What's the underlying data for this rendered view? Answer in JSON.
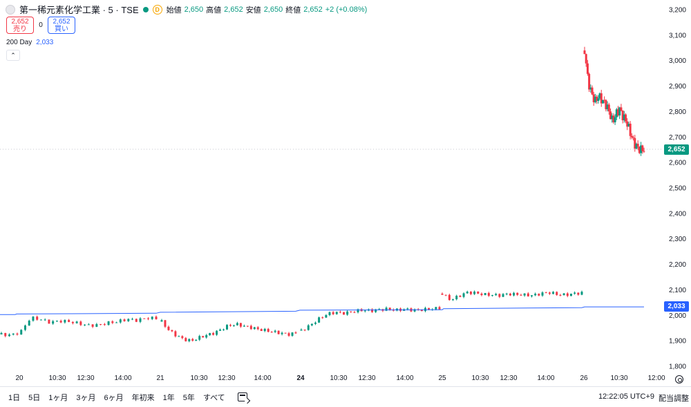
{
  "header": {
    "title": "第一稀元素化学工業 · 5 · TSE",
    "interval_badge": "D",
    "ohlc": [
      {
        "key": "始値",
        "value": "2,650"
      },
      {
        "key": "高値",
        "value": "2,652"
      },
      {
        "key": "安値",
        "value": "2,650"
      },
      {
        "key": "終値",
        "value": "2,652"
      },
      {
        "key": "",
        "value": "+2 (+0.08%)"
      }
    ]
  },
  "trade": {
    "sell_price": "2,652",
    "sell_label": "売り",
    "spread": "0",
    "buy_price": "2,652",
    "buy_label": "買い"
  },
  "ma_legend": {
    "label": "200 Day",
    "value": "2,033"
  },
  "collapse_icon": "chevron-up-icon",
  "price_tags": {
    "last": "2,652",
    "ma": "2,033"
  },
  "bottom_bar": {
    "ranges": [
      "1日",
      "5日",
      "1ヶ月",
      "3ヶ月",
      "6ヶ月",
      "年初来",
      "1年",
      "5年",
      "すべて"
    ],
    "clock": "12:22:05 UTC+9",
    "adjust": "配当調整"
  },
  "colors": {
    "up": "#089981",
    "down": "#f23645",
    "ma": "#2962ff",
    "grid": "#f0f3fa"
  },
  "chart_data": {
    "type": "candlestick",
    "y_axis": {
      "ticks": [
        3200,
        3100,
        3000,
        2900,
        2800,
        2700,
        2600,
        2500,
        2400,
        2300,
        2200,
        2100,
        2000,
        1900,
        1800
      ],
      "tick_labels": [
        "3,200",
        "3,100",
        "3,000",
        "2,900",
        "2,800",
        "2,700",
        "2,600",
        "2,500",
        "2,400",
        "2,300",
        "2,200",
        "2,100",
        "2,000",
        "1,900",
        "1,800"
      ],
      "ylim": [
        1770,
        3230
      ]
    },
    "x_axis": {
      "labels": [
        "20",
        "10:30",
        "12:30",
        "14:00",
        "21",
        "10:30",
        "12:30",
        "14:00",
        "24",
        "10:30",
        "12:30",
        "14:00",
        "25",
        "10:30",
        "12:30",
        "14:00",
        "26",
        "10:30",
        "12:00"
      ],
      "bold": [
        false,
        false,
        false,
        false,
        false,
        false,
        false,
        false,
        true,
        false,
        false,
        false,
        false,
        false,
        false,
        false,
        false,
        false,
        false
      ]
    },
    "last_price": 2652,
    "series": [
      {
        "name": "200 Day",
        "type": "line",
        "values": [
          2003,
          2003,
          2005,
          2008,
          2012,
          2016,
          2020,
          2022,
          2026,
          2030,
          2033,
          2033
        ]
      },
      {
        "name": "price",
        "type": "candles",
        "segments": [
          {
            "day": "20",
            "path": [
              1925,
              1922,
              1935,
              1990,
              1985,
              1972,
              1978,
              1975,
              1968,
              1960,
              1962,
              1970,
              1975,
              1985,
              1980,
              1990,
              1988
            ]
          },
          {
            "day": "21",
            "path": [
              1975,
              1940,
              1920,
              1905,
              1900,
              1912,
              1922,
              1930,
              1945,
              1960,
              1965,
              1958,
              1952,
              1945,
              1940,
              1935,
              1930,
              1925,
              1930
            ]
          },
          {
            "day": "24",
            "path": [
              1940,
              1960,
              1985,
              2005,
              2012,
              2008,
              2015,
              2020,
              2018,
              2022,
              2025,
              2020,
              2024,
              2020,
              2022,
              2025,
              2028
            ]
          },
          {
            "day": "25",
            "path": [
              2085,
              2060,
              2075,
              2090,
              2088,
              2082,
              2080,
              2078,
              2084,
              2082,
              2080,
              2078,
              2085,
              2090,
              2082,
              2080,
              2085,
              2088
            ]
          },
          {
            "day": "26",
            "path": [
              3040,
              2920,
              2870,
              2840,
              2860,
              2845,
              2830,
              2800,
              2760,
              2790,
              2810,
              2780,
              2760,
              2720,
              2680,
              2660,
              2650,
              2652
            ]
          }
        ]
      }
    ]
  }
}
